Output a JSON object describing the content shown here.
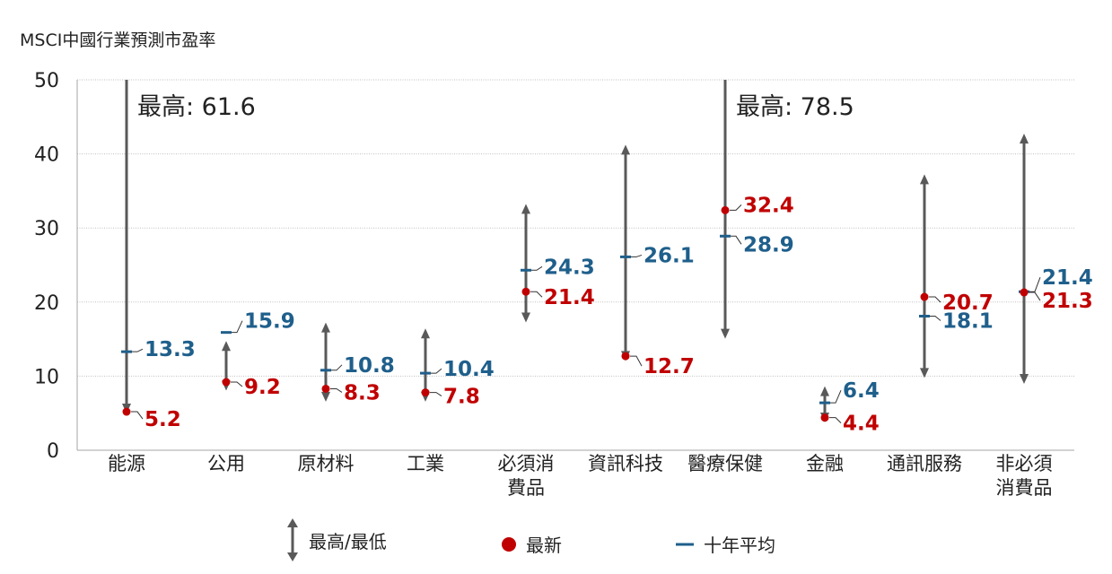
{
  "chart_data": {
    "type": "range",
    "title": "MSCI中國行業預測市盈率",
    "ylim": [
      0,
      50
    ],
    "yticks": [
      0,
      10,
      20,
      30,
      40,
      50
    ],
    "grid": true,
    "categories": [
      {
        "label": [
          "能源"
        ],
        "high": 61.6,
        "low": 5.2,
        "latest": 5.2,
        "avg": 13.3,
        "high_label": "最高: 61.6"
      },
      {
        "label": [
          "公用"
        ],
        "high": 14.5,
        "low": 8.3,
        "latest": 9.2,
        "avg": 15.9
      },
      {
        "label": [
          "原材料"
        ],
        "high": 17.0,
        "low": 6.8,
        "latest": 8.3,
        "avg": 10.8
      },
      {
        "label": [
          "工業"
        ],
        "high": 16.2,
        "low": 6.8,
        "latest": 7.8,
        "avg": 10.4
      },
      {
        "label": [
          "必須消",
          "費品"
        ],
        "high": 33.0,
        "low": 17.5,
        "latest": 21.4,
        "avg": 24.3
      },
      {
        "label": [
          "資訊科技"
        ],
        "high": 41.0,
        "low": 12.3,
        "latest": 12.7,
        "avg": 26.1
      },
      {
        "label": [
          "醫療保健"
        ],
        "high": 78.5,
        "low": 15.3,
        "latest": 32.4,
        "avg": 28.9,
        "high_label": "最高: 78.5"
      },
      {
        "label": [
          "金融"
        ],
        "high": 8.4,
        "low": 4.0,
        "latest": 4.4,
        "avg": 6.4
      },
      {
        "label": [
          "通訊服務"
        ],
        "high": 37.0,
        "low": 10.0,
        "latest": 20.7,
        "avg": 18.1
      },
      {
        "label": [
          "非必須",
          "消費品"
        ],
        "high": 42.5,
        "low": 9.2,
        "latest": 21.3,
        "avg": 21.4
      }
    ],
    "legend": {
      "range": "最高/最低",
      "latest": "最新",
      "avg": "十年平均"
    },
    "colors": {
      "range": "#595959",
      "latest": "#c00000",
      "avg": "#1f5f8b",
      "grid": "#bfbfbf"
    }
  }
}
